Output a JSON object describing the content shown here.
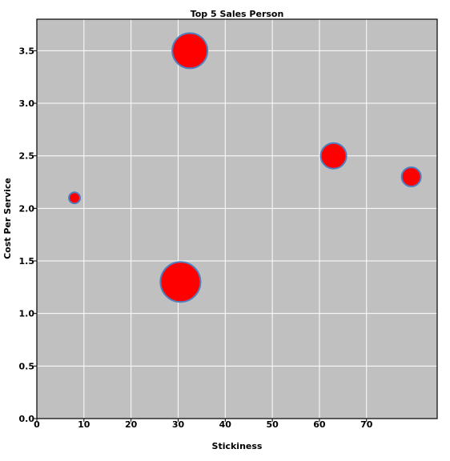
{
  "chart_data": {
    "type": "scatter",
    "title": "Top 5 Sales Person",
    "xlabel": "Stickiness",
    "ylabel": "Cost Per Service",
    "xlim": [
      0,
      85
    ],
    "ylim": [
      0,
      3.8
    ],
    "x_ticks": [
      "0",
      "10",
      "20",
      "30",
      "40",
      "50",
      "60",
      "70"
    ],
    "y_ticks": [
      "0.0",
      "0.5",
      "1.0",
      "1.5",
      "2.0",
      "2.5",
      "3.0",
      "3.5"
    ],
    "grid": true,
    "plot_background": "#c0c0c0",
    "point_fill": "#ff0000",
    "point_stroke": "#4f7fbf",
    "points": [
      {
        "x": 8,
        "y": 2.1,
        "size": 7
      },
      {
        "x": 32.5,
        "y": 3.5,
        "size": 22
      },
      {
        "x": 30.5,
        "y": 1.3,
        "size": 25
      },
      {
        "x": 63,
        "y": 2.5,
        "size": 16
      },
      {
        "x": 79.5,
        "y": 2.3,
        "size": 12
      }
    ]
  }
}
